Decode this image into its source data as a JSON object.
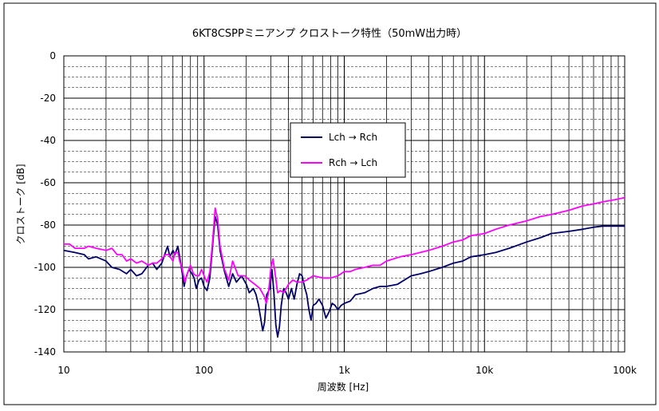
{
  "chart_data": {
    "type": "line",
    "title": "6KT8CSPPミニアンプ クロストーク特性（50mW出力時）",
    "xlabel": "周波数 [Hz]",
    "ylabel": "クロストーク [dB]",
    "x_scale": "log",
    "xlim": [
      10,
      100000
    ],
    "ylim": [
      -140,
      0
    ],
    "x_ticks": [
      10,
      100,
      1000,
      10000,
      100000
    ],
    "x_tick_labels": [
      "10",
      "100",
      "1k",
      "10k",
      "100k"
    ],
    "y_ticks": [
      0,
      -20,
      -40,
      -60,
      -80,
      -100,
      -120,
      -140
    ],
    "y_tick_labels": [
      "0",
      "-20",
      "-40",
      "-60",
      "-80",
      "-100",
      "-120",
      "-140"
    ],
    "grid": true,
    "legend_position": "upper-center",
    "series": [
      {
        "name": "Lch → Rch",
        "color": "#000066",
        "points": [
          [
            10,
            -92
          ],
          [
            12,
            -93
          ],
          [
            14,
            -94
          ],
          [
            15,
            -96
          ],
          [
            17,
            -95
          ],
          [
            20,
            -97
          ],
          [
            22,
            -100
          ],
          [
            25,
            -101
          ],
          [
            28,
            -103
          ],
          [
            30,
            -101
          ],
          [
            33,
            -104
          ],
          [
            36,
            -103
          ],
          [
            40,
            -99
          ],
          [
            43,
            -98
          ],
          [
            46,
            -101
          ],
          [
            50,
            -98
          ],
          [
            53,
            -93
          ],
          [
            55,
            -90
          ],
          [
            57,
            -95
          ],
          [
            60,
            -92
          ],
          [
            62,
            -94
          ],
          [
            65,
            -90
          ],
          [
            67,
            -95
          ],
          [
            70,
            -103
          ],
          [
            72,
            -109
          ],
          [
            75,
            -104
          ],
          [
            78,
            -101
          ],
          [
            82,
            -103
          ],
          [
            85,
            -105
          ],
          [
            88,
            -110
          ],
          [
            92,
            -106
          ],
          [
            96,
            -105
          ],
          [
            100,
            -109
          ],
          [
            105,
            -111
          ],
          [
            110,
            -105
          ],
          [
            115,
            -90
          ],
          [
            120,
            -76
          ],
          [
            125,
            -80
          ],
          [
            130,
            -92
          ],
          [
            140,
            -102
          ],
          [
            150,
            -109
          ],
          [
            160,
            -103
          ],
          [
            170,
            -107
          ],
          [
            185,
            -104
          ],
          [
            200,
            -108
          ],
          [
            210,
            -112
          ],
          [
            225,
            -110
          ],
          [
            235,
            -113
          ],
          [
            245,
            -118
          ],
          [
            255,
            -125
          ],
          [
            262,
            -130
          ],
          [
            270,
            -126
          ],
          [
            280,
            -113
          ],
          [
            295,
            -110
          ],
          [
            305,
            -101
          ],
          [
            315,
            -112
          ],
          [
            325,
            -127
          ],
          [
            335,
            -133
          ],
          [
            345,
            -128
          ],
          [
            355,
            -118
          ],
          [
            370,
            -110
          ],
          [
            385,
            -112
          ],
          [
            400,
            -115
          ],
          [
            420,
            -110
          ],
          [
            440,
            -115
          ],
          [
            460,
            -108
          ],
          [
            480,
            -103
          ],
          [
            500,
            -104
          ],
          [
            520,
            -109
          ],
          [
            540,
            -113
          ],
          [
            560,
            -120
          ],
          [
            580,
            -125
          ],
          [
            600,
            -118
          ],
          [
            630,
            -117
          ],
          [
            660,
            -115
          ],
          [
            700,
            -118
          ],
          [
            740,
            -124
          ],
          [
            780,
            -121
          ],
          [
            820,
            -117
          ],
          [
            860,
            -118
          ],
          [
            900,
            -120
          ],
          [
            950,
            -118
          ],
          [
            1000,
            -117
          ],
          [
            1100,
            -116
          ],
          [
            1200,
            -113
          ],
          [
            1400,
            -112
          ],
          [
            1600,
            -110
          ],
          [
            1800,
            -109
          ],
          [
            2000,
            -109
          ],
          [
            2400,
            -108
          ],
          [
            3000,
            -104
          ],
          [
            3500,
            -103
          ],
          [
            4000,
            -102
          ],
          [
            5000,
            -100
          ],
          [
            6000,
            -98
          ],
          [
            7000,
            -97
          ],
          [
            8000,
            -95
          ],
          [
            10000,
            -94
          ],
          [
            12000,
            -93
          ],
          [
            15000,
            -91
          ],
          [
            20000,
            -88
          ],
          [
            25000,
            -86
          ],
          [
            30000,
            -84
          ],
          [
            40000,
            -83
          ],
          [
            50000,
            -82
          ],
          [
            60000,
            -81
          ],
          [
            70000,
            -80.5
          ],
          [
            85000,
            -80.5
          ],
          [
            100000,
            -80.5
          ]
        ]
      },
      {
        "name": "Rch → Lch",
        "color": "#ff00ff",
        "points": [
          [
            10,
            -89
          ],
          [
            11,
            -89
          ],
          [
            12,
            -91
          ],
          [
            14,
            -91
          ],
          [
            15,
            -90
          ],
          [
            17,
            -91
          ],
          [
            20,
            -92
          ],
          [
            22,
            -91
          ],
          [
            24,
            -94
          ],
          [
            26,
            -94
          ],
          [
            28,
            -97
          ],
          [
            30,
            -96
          ],
          [
            33,
            -98
          ],
          [
            36,
            -97
          ],
          [
            40,
            -99
          ],
          [
            43,
            -98
          ],
          [
            46,
            -98
          ],
          [
            50,
            -96
          ],
          [
            53,
            -94
          ],
          [
            56,
            -94
          ],
          [
            60,
            -97
          ],
          [
            62,
            -93
          ],
          [
            65,
            -93
          ],
          [
            67,
            -97
          ],
          [
            70,
            -101
          ],
          [
            73,
            -107
          ],
          [
            76,
            -103
          ],
          [
            80,
            -99
          ],
          [
            84,
            -103
          ],
          [
            88,
            -104
          ],
          [
            92,
            -104
          ],
          [
            96,
            -101
          ],
          [
            100,
            -104
          ],
          [
            105,
            -107
          ],
          [
            110,
            -102
          ],
          [
            115,
            -88
          ],
          [
            120,
            -72
          ],
          [
            125,
            -77
          ],
          [
            130,
            -90
          ],
          [
            140,
            -101
          ],
          [
            150,
            -106
          ],
          [
            160,
            -97
          ],
          [
            175,
            -104
          ],
          [
            195,
            -104
          ],
          [
            210,
            -106
          ],
          [
            230,
            -108
          ],
          [
            250,
            -110
          ],
          [
            260,
            -112
          ],
          [
            270,
            -114
          ],
          [
            278,
            -117
          ],
          [
            288,
            -112
          ],
          [
            300,
            -100
          ],
          [
            310,
            -96
          ],
          [
            320,
            -102
          ],
          [
            335,
            -112
          ],
          [
            350,
            -111
          ],
          [
            370,
            -112
          ],
          [
            400,
            -108
          ],
          [
            430,
            -106
          ],
          [
            460,
            -107
          ],
          [
            500,
            -107
          ],
          [
            540,
            -106
          ],
          [
            600,
            -104
          ],
          [
            700,
            -105
          ],
          [
            800,
            -105
          ],
          [
            900,
            -104
          ],
          [
            1000,
            -102
          ],
          [
            1100,
            -102
          ],
          [
            1200,
            -101
          ],
          [
            1400,
            -100
          ],
          [
            1600,
            -99
          ],
          [
            1800,
            -99
          ],
          [
            2000,
            -97
          ],
          [
            2500,
            -95
          ],
          [
            3000,
            -94
          ],
          [
            4000,
            -92
          ],
          [
            5000,
            -90
          ],
          [
            6000,
            -88
          ],
          [
            7000,
            -87
          ],
          [
            8000,
            -85
          ],
          [
            10000,
            -84
          ],
          [
            12000,
            -82
          ],
          [
            15000,
            -80
          ],
          [
            20000,
            -78
          ],
          [
            25000,
            -76
          ],
          [
            30000,
            -75
          ],
          [
            40000,
            -73
          ],
          [
            50000,
            -71
          ],
          [
            60000,
            -70
          ],
          [
            70000,
            -69
          ],
          [
            85000,
            -68
          ],
          [
            100000,
            -67
          ]
        ]
      }
    ]
  }
}
